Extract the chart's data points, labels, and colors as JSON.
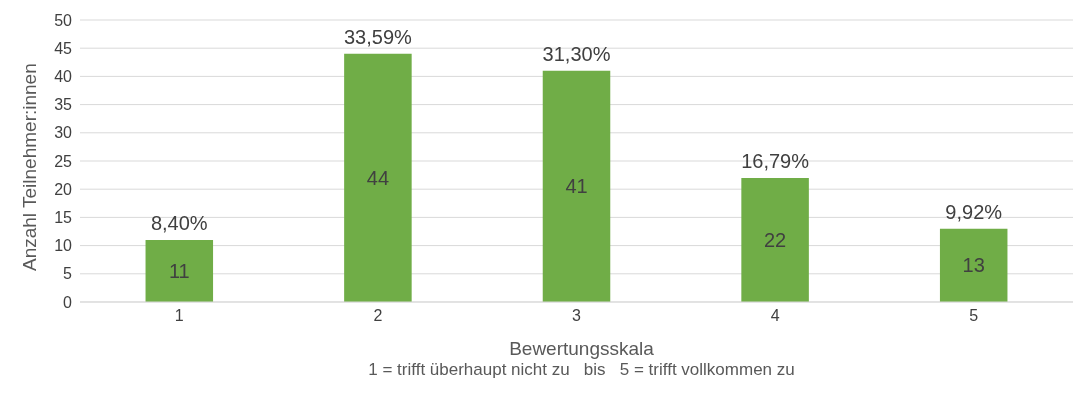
{
  "chart_data": {
    "type": "bar",
    "xlabel": "Bewertungsskala",
    "ylabel": "Anzahl Teilnehmer:innen",
    "categories": [
      "1",
      "2",
      "3",
      "4",
      "5"
    ],
    "values": [
      11,
      44,
      41,
      22,
      13
    ],
    "data_labels": true,
    "color": "#70ad47",
    "ylim": [
      0,
      50
    ],
    "yticks": [
      0,
      5,
      10,
      15,
      20,
      25,
      30,
      35,
      40,
      45,
      50
    ],
    "grid": "y",
    "annotations": [
      {
        "text": "8,40%",
        "x": "1",
        "y": 11
      },
      {
        "text": "33,59%",
        "x": "2",
        "y": 44
      },
      {
        "text": "31,30%",
        "x": "3",
        "y": 41
      },
      {
        "text": "16,79%",
        "x": "4",
        "y": 22
      },
      {
        "text": "9,92%",
        "x": "5",
        "y": 13
      },
      "1 = trifft überhaupt nicht zu   bis   5 = trifft vollkommen zu"
    ]
  }
}
